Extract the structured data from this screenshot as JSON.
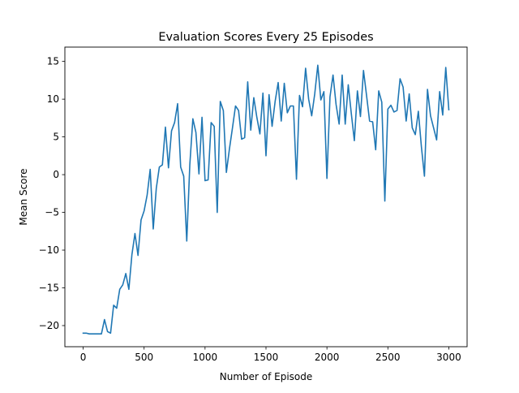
{
  "chart_data": {
    "type": "line",
    "title": "Evaluation Scores Every 25 Episodes",
    "xlabel": "Number of Episode",
    "ylabel": "Mean Score",
    "xlim": [
      -150,
      3150
    ],
    "ylim": [
      -22.8,
      16.9
    ],
    "xticks": [
      0,
      500,
      1000,
      1500,
      2000,
      2500,
      3000
    ],
    "yticks": [
      -20,
      -15,
      -10,
      -5,
      0,
      5,
      10,
      15
    ],
    "grid": false,
    "legend": "none",
    "line_color": "#1f77b4",
    "series": [
      {
        "x": [
          0,
          25,
          50,
          75,
          100,
          125,
          150,
          175,
          200,
          225,
          250,
          275,
          300,
          325,
          350,
          375,
          400,
          425,
          450,
          475,
          500,
          525,
          550,
          575,
          600,
          625,
          650,
          675,
          700,
          725,
          750,
          775,
          800,
          825,
          850,
          875,
          900,
          925,
          950,
          975,
          1000,
          1025,
          1050,
          1075,
          1100,
          1125,
          1150,
          1175,
          1200,
          1225,
          1250,
          1275,
          1300,
          1325,
          1350,
          1375,
          1400,
          1425,
          1450,
          1475,
          1500,
          1525,
          1550,
          1575,
          1600,
          1625,
          1650,
          1675,
          1700,
          1725,
          1750,
          1775,
          1800,
          1825,
          1850,
          1875,
          1900,
          1925,
          1950,
          1975,
          2000,
          2025,
          2050,
          2075,
          2100,
          2125,
          2150,
          2175,
          2200,
          2225,
          2250,
          2275,
          2300,
          2325,
          2350,
          2375,
          2400,
          2425,
          2450,
          2475,
          2500,
          2525,
          2550,
          2575,
          2600,
          2625,
          2650,
          2675,
          2700,
          2725,
          2750,
          2775,
          2800,
          2825,
          2850,
          2875,
          2900,
          2925,
          2950,
          2975,
          3000
        ],
        "y": [
          -21,
          -21,
          -21.1,
          -21.1,
          -21.1,
          -21.1,
          -21.1,
          -19.2,
          -20.8,
          -21,
          -17.3,
          -17.7,
          -15.2,
          -14.6,
          -13.1,
          -15.2,
          -10.6,
          -7.8,
          -10.7,
          -6,
          -4.8,
          -2.7,
          0.7,
          -7.2,
          -1.8,
          1,
          1.3,
          6.3,
          0.9,
          5.8,
          6.9,
          9.4,
          1,
          -0.2,
          -8.8,
          1.3,
          7.4,
          5.6,
          0.1,
          7.6,
          -0.8,
          -0.7,
          6.9,
          6.4,
          -5,
          9.7,
          8.5,
          0.3,
          3.4,
          6.2,
          9.1,
          8.5,
          4.7,
          4.9,
          12.3,
          5.9,
          10.2,
          7.6,
          5.4,
          10.8,
          2.5,
          10.6,
          6.4,
          9.7,
          12.2,
          7.1,
          12.1,
          8.2,
          9.1,
          9.1,
          -0.6,
          10.5,
          9,
          14.1,
          10,
          7.8,
          10.7,
          14.5,
          9.9,
          11,
          -0.5,
          10.3,
          13.2,
          9.3,
          6.7,
          13.2,
          6.7,
          11.9,
          8.1,
          4.5,
          11.1,
          7.7,
          13.8,
          10.5,
          7.1,
          7,
          3.3,
          11.1,
          9.6,
          -3.5,
          8.7,
          9.2,
          8.3,
          8.5,
          12.7,
          11.6,
          7.1,
          10.7,
          6.2,
          5.3,
          8.4,
          3.7,
          -0.2,
          11.3,
          7.8,
          6.2,
          4.6,
          11,
          7.9,
          14.2,
          8.6
        ]
      }
    ]
  }
}
